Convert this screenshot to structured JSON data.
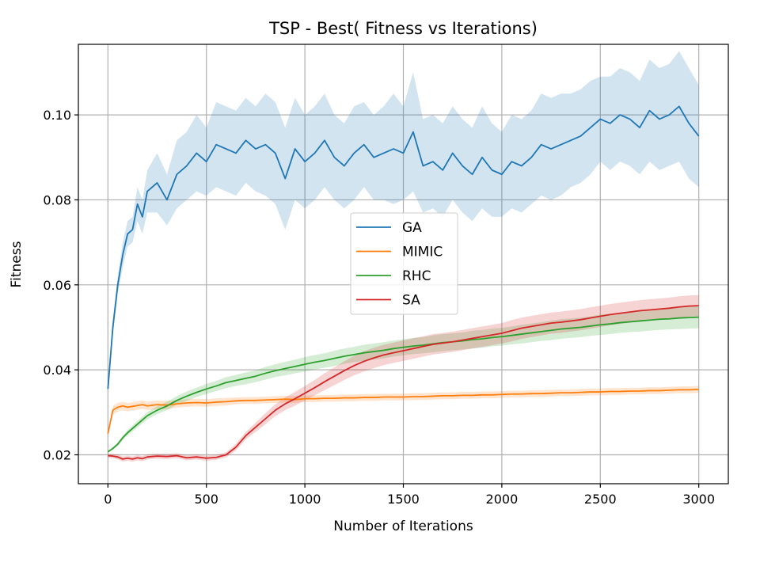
{
  "chart_data": {
    "type": "line",
    "title": "TSP - Best( Fitness vs Iterations)",
    "xlabel": "Number of Iterations",
    "ylabel": "Fitness",
    "xlim": [
      -150,
      3150
    ],
    "ylim": [
      0.0132,
      0.1166
    ],
    "xticks": [
      0,
      500,
      1000,
      1500,
      2000,
      2500,
      3000
    ],
    "xtick_labels": [
      "0",
      "500",
      "1000",
      "1500",
      "2000",
      "2500",
      "3000"
    ],
    "yticks": [
      0.02,
      0.04,
      0.06,
      0.08,
      0.1
    ],
    "ytick_labels": [
      "0.02",
      "0.04",
      "0.06",
      "0.08",
      "0.10"
    ],
    "grid": true,
    "legend_position": "center",
    "x": [
      0,
      25,
      50,
      75,
      100,
      125,
      150,
      175,
      200,
      250,
      300,
      350,
      400,
      450,
      500,
      550,
      600,
      650,
      700,
      750,
      800,
      850,
      900,
      950,
      1000,
      1050,
      1100,
      1150,
      1200,
      1250,
      1300,
      1350,
      1400,
      1450,
      1500,
      1550,
      1600,
      1650,
      1700,
      1750,
      1800,
      1850,
      1900,
      1950,
      2000,
      2050,
      2100,
      2150,
      2200,
      2250,
      2300,
      2350,
      2400,
      2450,
      2500,
      2550,
      2600,
      2650,
      2700,
      2750,
      2800,
      2850,
      2900,
      2950,
      3000
    ],
    "series": [
      {
        "name": "GA",
        "color": "#1f77b4",
        "band_color": "#1f77b4",
        "values": [
          0.0355,
          0.05,
          0.06,
          0.067,
          0.072,
          0.073,
          0.079,
          0.076,
          0.082,
          0.084,
          0.08,
          0.086,
          0.088,
          0.091,
          0.089,
          0.093,
          0.092,
          0.091,
          0.094,
          0.092,
          0.093,
          0.091,
          0.085,
          0.092,
          0.089,
          0.091,
          0.094,
          0.09,
          0.088,
          0.091,
          0.093,
          0.09,
          0.091,
          0.092,
          0.091,
          0.096,
          0.088,
          0.089,
          0.087,
          0.091,
          0.088,
          0.086,
          0.09,
          0.087,
          0.086,
          0.089,
          0.088,
          0.09,
          0.093,
          0.092,
          0.093,
          0.094,
          0.095,
          0.097,
          0.099,
          0.098,
          0.1,
          0.099,
          0.097,
          0.101,
          0.099,
          0.1,
          0.102,
          0.098,
          0.095
        ],
        "lower": [
          0.0355,
          0.048,
          0.058,
          0.064,
          0.069,
          0.07,
          0.075,
          0.072,
          0.077,
          0.077,
          0.074,
          0.078,
          0.08,
          0.082,
          0.081,
          0.083,
          0.082,
          0.081,
          0.084,
          0.082,
          0.081,
          0.079,
          0.073,
          0.08,
          0.078,
          0.08,
          0.083,
          0.08,
          0.078,
          0.08,
          0.083,
          0.08,
          0.08,
          0.079,
          0.08,
          0.082,
          0.077,
          0.078,
          0.076,
          0.08,
          0.077,
          0.075,
          0.078,
          0.076,
          0.076,
          0.078,
          0.077,
          0.079,
          0.081,
          0.08,
          0.081,
          0.083,
          0.084,
          0.086,
          0.089,
          0.087,
          0.089,
          0.088,
          0.086,
          0.089,
          0.087,
          0.088,
          0.089,
          0.085,
          0.083
        ],
        "upper": [
          0.0355,
          0.052,
          0.062,
          0.07,
          0.075,
          0.076,
          0.083,
          0.08,
          0.087,
          0.091,
          0.086,
          0.094,
          0.096,
          0.1,
          0.097,
          0.103,
          0.102,
          0.101,
          0.104,
          0.102,
          0.105,
          0.103,
          0.097,
          0.104,
          0.1,
          0.102,
          0.105,
          0.1,
          0.098,
          0.102,
          0.103,
          0.1,
          0.102,
          0.105,
          0.102,
          0.11,
          0.099,
          0.1,
          0.098,
          0.102,
          0.099,
          0.097,
          0.102,
          0.098,
          0.096,
          0.1,
          0.099,
          0.101,
          0.105,
          0.104,
          0.105,
          0.105,
          0.106,
          0.108,
          0.109,
          0.109,
          0.111,
          0.11,
          0.108,
          0.113,
          0.111,
          0.112,
          0.115,
          0.111,
          0.107
        ]
      },
      {
        "name": "MIMIC",
        "color": "#ff7f0e",
        "band_color": "#ff7f0e",
        "values": [
          0.025,
          0.0305,
          0.0312,
          0.0315,
          0.0312,
          0.0314,
          0.0316,
          0.0318,
          0.0315,
          0.0318,
          0.0317,
          0.032,
          0.0322,
          0.0323,
          0.0322,
          0.0324,
          0.0325,
          0.0327,
          0.0328,
          0.0328,
          0.0329,
          0.033,
          0.0331,
          0.033,
          0.0332,
          0.0332,
          0.0333,
          0.0333,
          0.0334,
          0.0334,
          0.0335,
          0.0335,
          0.0336,
          0.0336,
          0.0336,
          0.0337,
          0.0337,
          0.0338,
          0.0339,
          0.0339,
          0.034,
          0.034,
          0.0341,
          0.0341,
          0.0342,
          0.0343,
          0.0343,
          0.0344,
          0.0344,
          0.0345,
          0.0346,
          0.0346,
          0.0347,
          0.0348,
          0.0348,
          0.0349,
          0.0349,
          0.035,
          0.035,
          0.0351,
          0.0351,
          0.0352,
          0.0353,
          0.0353,
          0.0354
        ],
        "lower": [
          0.025,
          0.0295,
          0.0302,
          0.0305,
          0.0302,
          0.0304,
          0.0306,
          0.0308,
          0.0305,
          0.0308,
          0.0307,
          0.0311,
          0.0313,
          0.0314,
          0.0313,
          0.0315,
          0.0316,
          0.0319,
          0.032,
          0.032,
          0.0321,
          0.0322,
          0.0323,
          0.0322,
          0.0324,
          0.0324,
          0.0325,
          0.0325,
          0.0326,
          0.0326,
          0.0327,
          0.0327,
          0.0328,
          0.0328,
          0.0328,
          0.0329,
          0.0329,
          0.033,
          0.0331,
          0.0331,
          0.0332,
          0.0332,
          0.0333,
          0.0333,
          0.0334,
          0.0335,
          0.0335,
          0.0336,
          0.0336,
          0.0337,
          0.0338,
          0.0338,
          0.0339,
          0.034,
          0.034,
          0.0341,
          0.0341,
          0.0342,
          0.0342,
          0.0343,
          0.0343,
          0.0344,
          0.0345,
          0.0345,
          0.0346
        ],
        "upper": [
          0.025,
          0.0315,
          0.0322,
          0.0325,
          0.0322,
          0.0324,
          0.0326,
          0.0328,
          0.0325,
          0.0328,
          0.0327,
          0.0329,
          0.0331,
          0.0332,
          0.0331,
          0.0333,
          0.0334,
          0.0335,
          0.0336,
          0.0336,
          0.0337,
          0.0338,
          0.0339,
          0.0338,
          0.034,
          0.034,
          0.0341,
          0.0341,
          0.0342,
          0.0342,
          0.0343,
          0.0343,
          0.0344,
          0.0344,
          0.0344,
          0.0345,
          0.0345,
          0.0346,
          0.0347,
          0.0347,
          0.0348,
          0.0348,
          0.0349,
          0.0349,
          0.035,
          0.0351,
          0.0351,
          0.0352,
          0.0352,
          0.0353,
          0.0354,
          0.0354,
          0.0355,
          0.0356,
          0.0356,
          0.0357,
          0.0357,
          0.0358,
          0.0358,
          0.0359,
          0.0359,
          0.036,
          0.0361,
          0.0361,
          0.0362
        ]
      },
      {
        "name": "RHC",
        "color": "#2ca02c",
        "band_color": "#2ca02c",
        "values": [
          0.0207,
          0.0215,
          0.0225,
          0.024,
          0.0252,
          0.0262,
          0.0272,
          0.0282,
          0.0292,
          0.0305,
          0.0315,
          0.0328,
          0.0338,
          0.0347,
          0.0355,
          0.0362,
          0.037,
          0.0375,
          0.038,
          0.0385,
          0.0392,
          0.0398,
          0.0403,
          0.0408,
          0.0413,
          0.0418,
          0.0422,
          0.0427,
          0.0432,
          0.0436,
          0.044,
          0.0443,
          0.0446,
          0.045,
          0.0453,
          0.0456,
          0.0458,
          0.0461,
          0.0464,
          0.0466,
          0.0468,
          0.0471,
          0.0473,
          0.0476,
          0.0478,
          0.0481,
          0.0484,
          0.0487,
          0.049,
          0.0493,
          0.0496,
          0.0498,
          0.05,
          0.0503,
          0.0506,
          0.0508,
          0.0511,
          0.0513,
          0.0515,
          0.0517,
          0.0519,
          0.052,
          0.0522,
          0.0523,
          0.0524
        ],
        "lower": [
          0.0207,
          0.0212,
          0.0221,
          0.0235,
          0.0246,
          0.0255,
          0.0264,
          0.0274,
          0.0283,
          0.0296,
          0.0305,
          0.0318,
          0.0327,
          0.0336,
          0.0343,
          0.035,
          0.0357,
          0.0362,
          0.0366,
          0.0371,
          0.0377,
          0.0383,
          0.0387,
          0.0392,
          0.0396,
          0.0401,
          0.0405,
          0.0409,
          0.0414,
          0.0418,
          0.0421,
          0.0424,
          0.0427,
          0.0431,
          0.0434,
          0.0437,
          0.0439,
          0.0441,
          0.0444,
          0.0446,
          0.0448,
          0.045,
          0.0452,
          0.0455,
          0.0457,
          0.046,
          0.0462,
          0.0465,
          0.0468,
          0.047,
          0.0473,
          0.0475,
          0.0477,
          0.048,
          0.0482,
          0.0484,
          0.0487,
          0.0489,
          0.049,
          0.0492,
          0.0494,
          0.0495,
          0.0496,
          0.0497,
          0.0498
        ],
        "upper": [
          0.0207,
          0.0218,
          0.0229,
          0.0245,
          0.0258,
          0.0269,
          0.028,
          0.029,
          0.0301,
          0.0314,
          0.0325,
          0.0338,
          0.0349,
          0.0358,
          0.0367,
          0.0374,
          0.0383,
          0.0388,
          0.0394,
          0.0399,
          0.0407,
          0.0413,
          0.0419,
          0.0424,
          0.043,
          0.0435,
          0.0439,
          0.0445,
          0.045,
          0.0454,
          0.0459,
          0.0462,
          0.0465,
          0.0469,
          0.0472,
          0.0475,
          0.0477,
          0.0481,
          0.0484,
          0.0486,
          0.0488,
          0.0492,
          0.0494,
          0.0497,
          0.0499,
          0.0502,
          0.0506,
          0.0509,
          0.0512,
          0.0516,
          0.0519,
          0.0521,
          0.0523,
          0.0526,
          0.053,
          0.0532,
          0.0535,
          0.0537,
          0.054,
          0.0542,
          0.0544,
          0.0545,
          0.0548,
          0.0549,
          0.055
        ]
      },
      {
        "name": "SA",
        "color": "#d62728",
        "band_color": "#d62728",
        "values": [
          0.0198,
          0.0197,
          0.0195,
          0.019,
          0.0192,
          0.019,
          0.0193,
          0.0191,
          0.0195,
          0.0197,
          0.0196,
          0.0198,
          0.0193,
          0.0195,
          0.0192,
          0.0194,
          0.02,
          0.0218,
          0.0245,
          0.0265,
          0.0285,
          0.0305,
          0.032,
          0.0332,
          0.0345,
          0.0358,
          0.0372,
          0.0385,
          0.0398,
          0.041,
          0.042,
          0.0428,
          0.0435,
          0.044,
          0.0445,
          0.045,
          0.0455,
          0.046,
          0.0463,
          0.0466,
          0.047,
          0.0474,
          0.0478,
          0.0482,
          0.0486,
          0.0492,
          0.0498,
          0.0502,
          0.0506,
          0.051,
          0.0512,
          0.0515,
          0.0518,
          0.0522,
          0.0526,
          0.053,
          0.0533,
          0.0536,
          0.0539,
          0.0541,
          0.0543,
          0.0545,
          0.0548,
          0.055,
          0.0551
        ],
        "lower": [
          0.0193,
          0.0192,
          0.0189,
          0.0184,
          0.0186,
          0.0184,
          0.0187,
          0.0185,
          0.0189,
          0.0191,
          0.019,
          0.0192,
          0.0187,
          0.0189,
          0.0186,
          0.0188,
          0.0194,
          0.021,
          0.0236,
          0.0254,
          0.0272,
          0.0291,
          0.0305,
          0.0316,
          0.0328,
          0.034,
          0.0352,
          0.0364,
          0.0376,
          0.0387,
          0.0396,
          0.0404,
          0.0411,
          0.0416,
          0.0421,
          0.0426,
          0.0431,
          0.0436,
          0.0439,
          0.0442,
          0.0446,
          0.045,
          0.0454,
          0.0458,
          0.0462,
          0.0467,
          0.0473,
          0.0477,
          0.0481,
          0.0485,
          0.0487,
          0.049,
          0.0493,
          0.0497,
          0.0501,
          0.0505,
          0.0508,
          0.0511,
          0.0514,
          0.0516,
          0.0518,
          0.052,
          0.0523,
          0.0525,
          0.0526
        ],
        "upper": [
          0.0203,
          0.0202,
          0.0201,
          0.0196,
          0.0198,
          0.0196,
          0.0199,
          0.0197,
          0.0201,
          0.0203,
          0.0202,
          0.0204,
          0.0199,
          0.0201,
          0.0198,
          0.02,
          0.0206,
          0.0226,
          0.0254,
          0.0276,
          0.0298,
          0.0319,
          0.0335,
          0.0348,
          0.0362,
          0.0376,
          0.0392,
          0.0406,
          0.042,
          0.0433,
          0.0444,
          0.0452,
          0.0459,
          0.0464,
          0.0469,
          0.0474,
          0.0479,
          0.0484,
          0.0487,
          0.049,
          0.0494,
          0.0498,
          0.0502,
          0.0506,
          0.051,
          0.0517,
          0.0523,
          0.0527,
          0.0531,
          0.0535,
          0.0537,
          0.054,
          0.0543,
          0.0547,
          0.0551,
          0.0555,
          0.0558,
          0.0561,
          0.0564,
          0.0566,
          0.0568,
          0.057,
          0.0573,
          0.0575,
          0.0576
        ]
      }
    ]
  }
}
